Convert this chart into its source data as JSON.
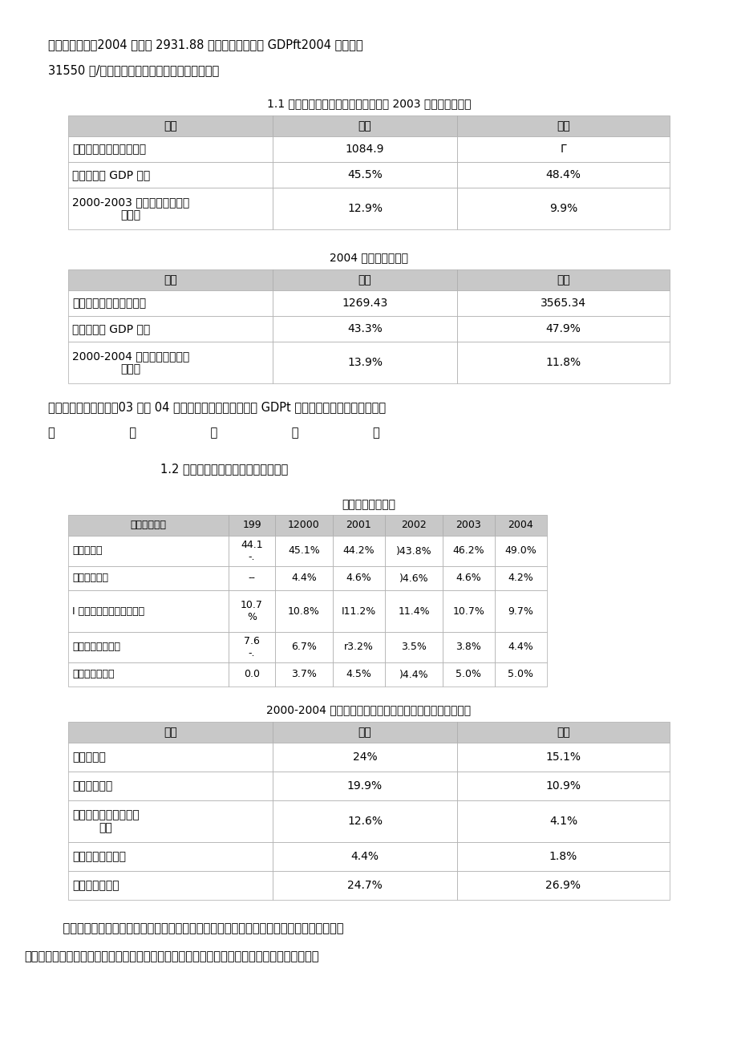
{
  "bg_color": "#ffffff",
  "page_width": 9.2,
  "page_height": 13.03,
  "top_text1": "市中位列首位，2004 年达到 2931.88 亿元。同时，人均 GDPft2004 年达到了",
  "top_text2": "31550 元/人，平均增长率在直辖市中是最高的。",
  "table1_title": "1.1 天津和上海的产业结构和变化比较 2003 年第三产业情况",
  "table1_headers": [
    "指标",
    "天津",
    "上海"
  ],
  "table1_rows": [
    [
      "第二产业增加值（亿元）",
      "1084.9",
      "Γ"
    ],
    [
      "第二产业占 GDP 比重",
      "45.5%",
      "48.4%"
    ],
    [
      "2000-2003 年第三产业平均增\n长速度",
      "12.9%",
      "9.9%"
    ]
  ],
  "table2_title": "2004 年第三产业情况",
  "table2_headers": [
    "指标",
    "天津",
    "上海"
  ],
  "table2_rows": [
    [
      "第二产业增加值（亿元）",
      "1269.43",
      "3565.34"
    ],
    [
      "第二产业占 GDP 比重",
      "43.3%",
      "47.9%"
    ],
    [
      "2000-2004 年第三产业平均增\n长速度",
      "13.9%",
      "11.8%"
    ]
  ],
  "mid_text1": "从上面数据可以看出，03 年和 04 年天津的第三产业总量、占 GDPt 匕重不如上海，但增长速度均",
  "mid_text2": "比                    上                    海                    快                    。",
  "section2_title": "1.2 上海和天津的行业结构和变化比较",
  "table3_title": "天津主要行业结构",
  "table3_headers": [
    "主要行业比重",
    "199",
    "12000",
    "2001",
    "2002",
    "2003",
    "2004"
  ],
  "table3_rows": [
    [
      "卜业增加值",
      "44.1\n-.",
      "45.1%",
      "44.2%",
      ")43.8%",
      "46.2%",
      "49.0%"
    ],
    [
      "建筑业增加值",
      "--",
      "4.4%",
      "4.6%",
      ")4.6%",
      "4.6%",
      "4.2%"
    ],
    [
      "Ⅰ 通运输邮电仓储业增加宜",
      "10.7\n%",
      "10.8%",
      "I11.2%",
      "11.4%",
      "10.7%",
      "9.7%"
    ],
    [
      "金融保险业增加值",
      "7.6\n-.",
      "6.7%",
      "r3.2%",
      "3.5%",
      "3.8%",
      "4.4%"
    ],
    [
      "房地产业增加值",
      "0.0",
      "3.7%",
      "4.5%",
      ")4.4%",
      "5.0%",
      "5.0%"
    ]
  ],
  "table4_title": "2000-2004 年天津、上海主要行业增加值平均增长速度比较",
  "table4_headers": [
    "指标",
    "天津",
    "上海"
  ],
  "table4_rows": [
    [
      "工业增加值",
      "24%",
      "15.1%"
    ],
    [
      "建筑业增加值",
      "19.9%",
      "10.9%"
    ],
    [
      "交通运输邮电仓储业增\n加值",
      "12.6%",
      "4.1%"
    ],
    [
      "金融保险业增加值",
      "4.4%",
      "1.8%"
    ],
    [
      "房地产业增加值",
      "24.7%",
      "26.9%"
    ]
  ],
  "bottom_text1": "    工业、交通运输邮电仓储业一直是天津的支柱产业，房地产对天津的经济贡献正在增强；与",
  "bottom_text2": "上海相比较，工业增加值、建筑业增加值、交通运输邮电仓储业增加值、金融保险业增加值，增",
  "header_bg": "#c8c8c8",
  "cell_bg_even": "#ffffff",
  "cell_bg_odd": "#ffffff",
  "border_color": "#aaaaaa"
}
